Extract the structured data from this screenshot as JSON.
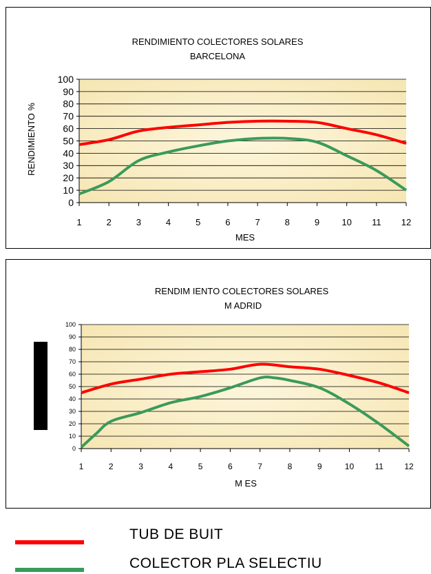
{
  "chart_data": [
    {
      "type": "line",
      "title": "RENDIMIENTO COLECTORES SOLARES",
      "subtitle": "BARCELONA",
      "xlabel": "MES",
      "ylabel": "RENDIMIENTO %",
      "xlim": [
        1,
        12
      ],
      "ylim": [
        0,
        100
      ],
      "y_ticks": [
        0,
        10,
        20,
        30,
        40,
        50,
        60,
        70,
        80,
        90,
        100
      ],
      "x_ticks": [
        1,
        2,
        3,
        4,
        5,
        6,
        7,
        8,
        9,
        10,
        11,
        12
      ],
      "grid": true,
      "series": [
        {
          "name": "TUB DE BUIT",
          "color": "#ff0000",
          "x": [
            1,
            2,
            3,
            4,
            5,
            6,
            7,
            8,
            9,
            10,
            11,
            12
          ],
          "values": [
            47,
            51,
            58,
            61,
            63,
            65,
            66,
            66,
            65,
            60,
            55,
            48
          ]
        },
        {
          "name": "COLECTOR PLA SELECTIU",
          "color": "#3a9a5a",
          "x": [
            1,
            2,
            3,
            4,
            5,
            6,
            7,
            8,
            9,
            10,
            11,
            12
          ],
          "values": [
            7,
            17,
            34,
            41,
            46,
            50,
            52,
            52,
            49,
            38,
            26,
            10
          ]
        }
      ]
    },
    {
      "type": "line",
      "title": "RENDIM IENTO COLECTORES SOLARES",
      "subtitle": "M ADRID",
      "xlabel": "M ES",
      "ylabel": "",
      "xlim": [
        1,
        12
      ],
      "ylim": [
        0,
        100
      ],
      "y_ticks": [
        0,
        10,
        20,
        30,
        40,
        50,
        60,
        70,
        80,
        90,
        100
      ],
      "x_ticks": [
        1,
        2,
        3,
        4,
        5,
        6,
        7,
        8,
        9,
        10,
        11,
        12
      ],
      "grid": true,
      "series": [
        {
          "name": "TUB DE BUIT",
          "color": "#ff0000",
          "x": [
            1,
            2,
            3,
            4,
            5,
            6,
            7,
            8,
            9,
            10,
            11,
            12
          ],
          "values": [
            45,
            52,
            56,
            60,
            62,
            64,
            68,
            66,
            64,
            59,
            53,
            45
          ]
        },
        {
          "name": "COLECTOR PLA SELECTIU",
          "color": "#3a9a5a",
          "x": [
            1,
            1.5,
            2,
            3,
            4,
            5,
            6,
            7,
            7.5,
            8,
            9,
            10,
            11,
            12
          ],
          "values": [
            1,
            12,
            22,
            29,
            37,
            42,
            49,
            57,
            57,
            55,
            49,
            36,
            20,
            2
          ]
        }
      ]
    }
  ],
  "legend": [
    {
      "label": "TUB DE BUIT",
      "color": "#ff0000"
    },
    {
      "label": "COLECTOR PLA SELECTIU",
      "color": "#3a9a5a"
    }
  ]
}
